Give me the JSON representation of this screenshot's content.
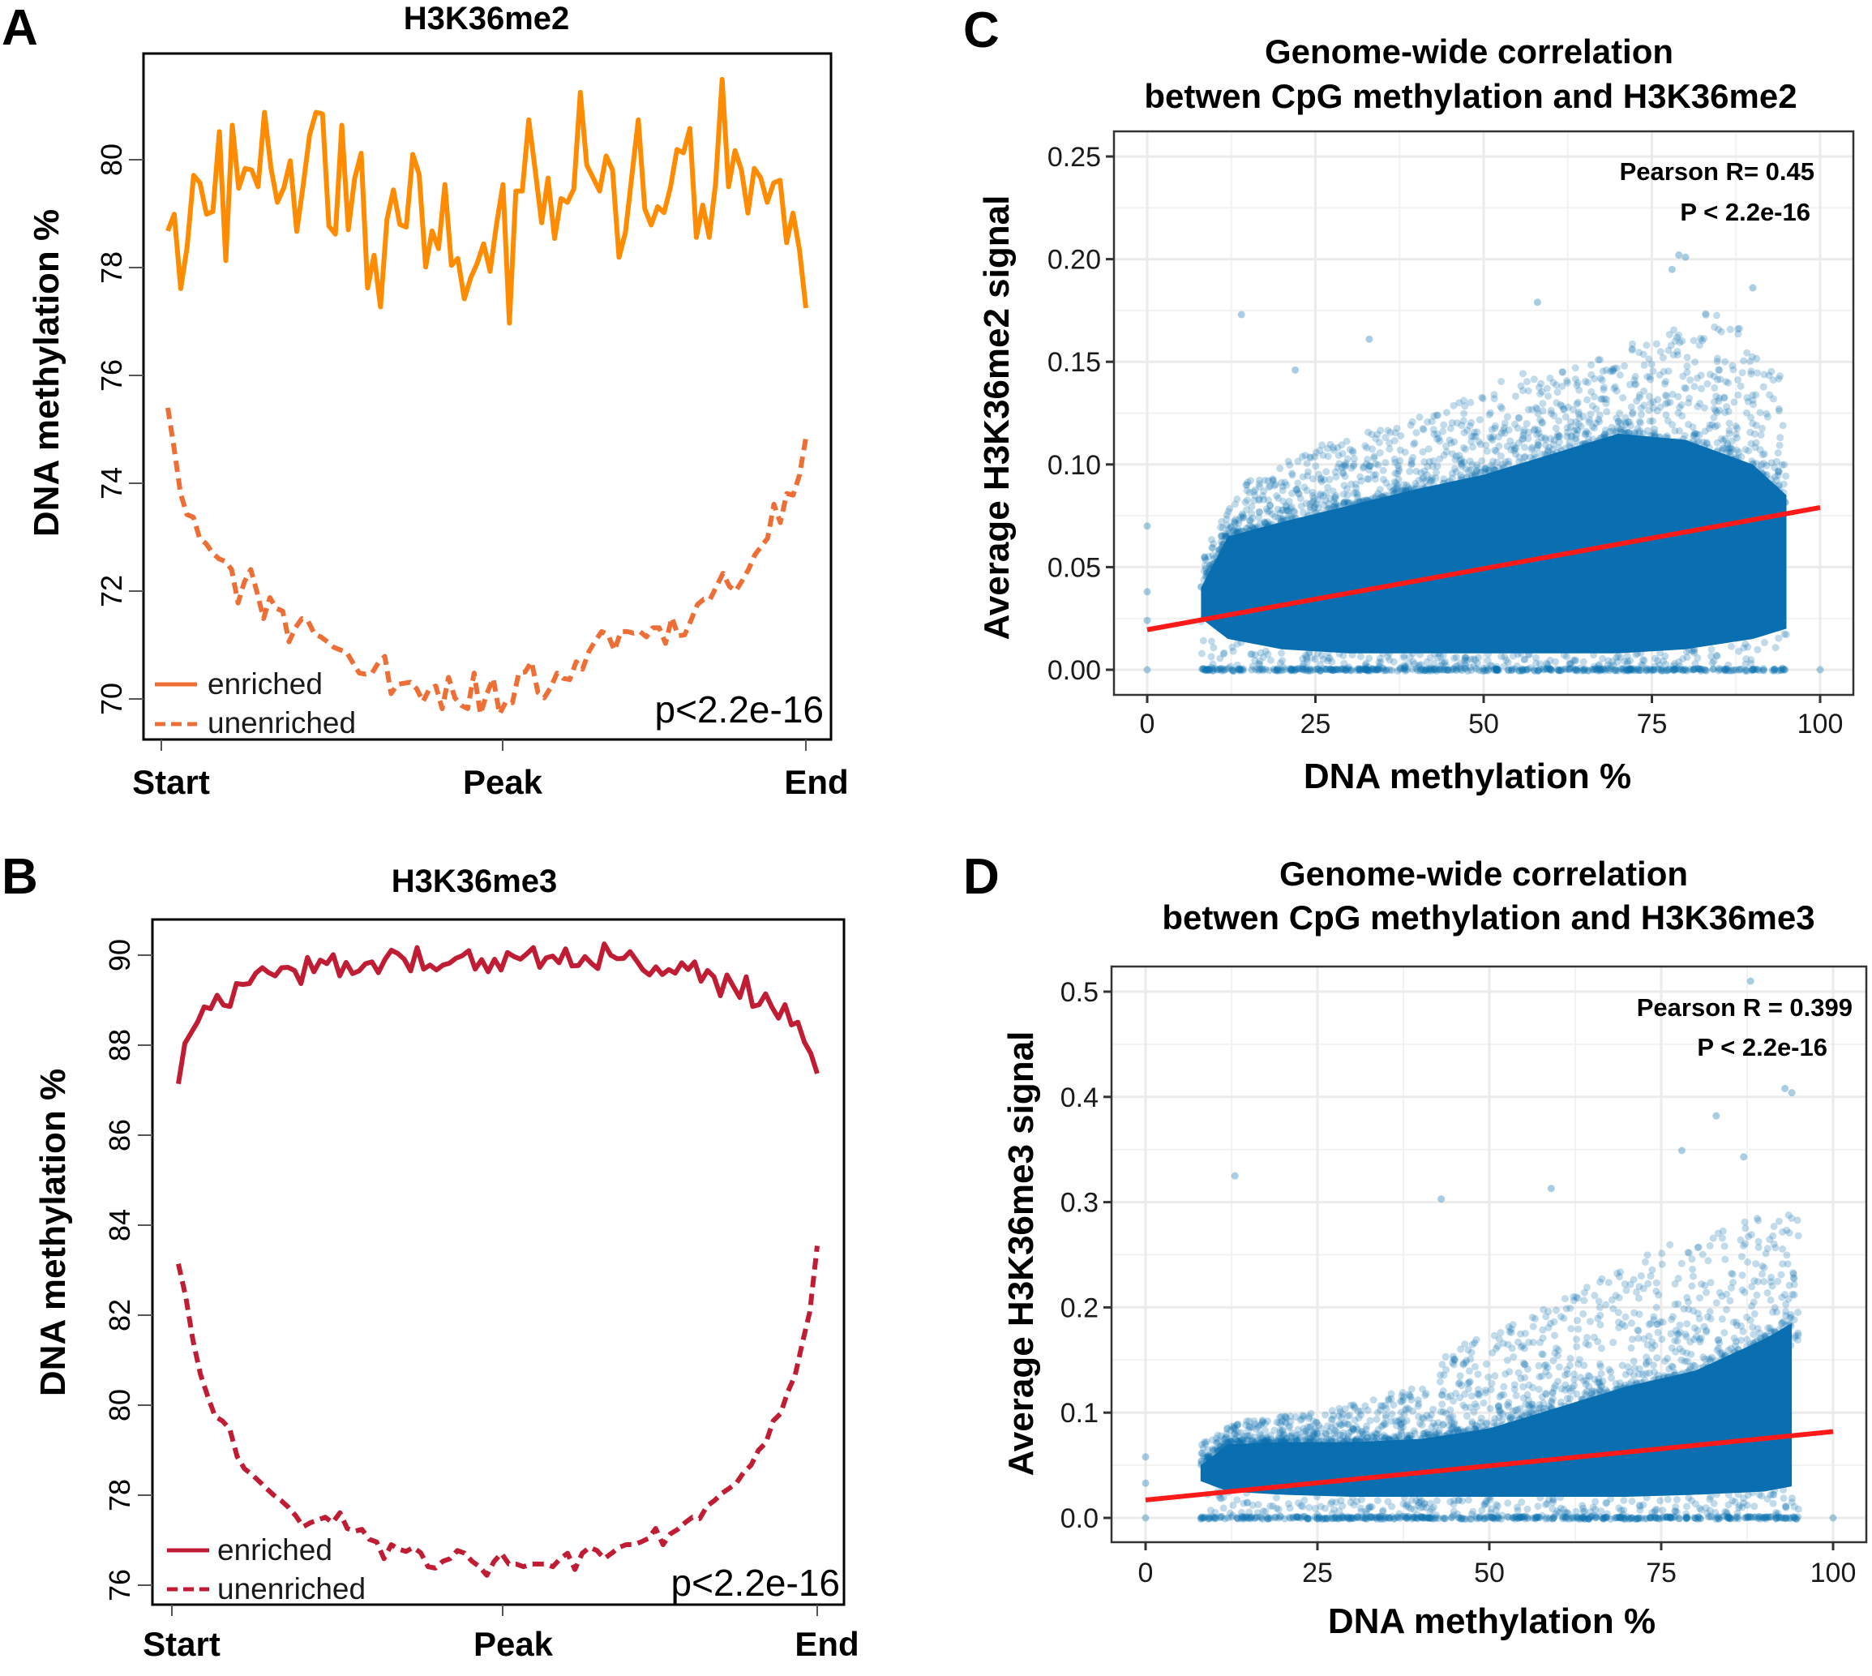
{
  "panels": {
    "A": {
      "letter": "A"
    },
    "B": {
      "letter": "B"
    },
    "C": {
      "letter": "C"
    },
    "D": {
      "letter": "D"
    }
  },
  "colors": {
    "A_enriched": "#ff8c00",
    "A_legend": "#ee6f36",
    "A_unenriched": "#ee6f36",
    "B_line": "#c01c33",
    "scatter_point": "#0a6fb0",
    "scatter_core": "#0a6fb0",
    "regression": "#ff1a1a",
    "grid": "#ebebeb",
    "frame": "#333333"
  },
  "chart_data": [
    {
      "id": "A",
      "type": "line",
      "title": "H3K36me2",
      "xlabel": "",
      "ylabel": "DNA methylation %",
      "x_categories": [
        "Start",
        "Peak",
        "End"
      ],
      "ylim": [
        69.3,
        81.9
      ],
      "yticks": [
        70,
        72,
        74,
        76,
        78,
        80
      ],
      "grid": false,
      "legend": {
        "placement": "bottom-left",
        "entries": [
          "enriched",
          "unenriched"
        ]
      },
      "annotation": "p<2.2e-16",
      "series": [
        {
          "name": "enriched",
          "style": "solid",
          "values": [
            78.68,
            78.99,
            77.61,
            78.38,
            79.71,
            79.57,
            78.99,
            79.04,
            80.52,
            78.13,
            80.64,
            79.47,
            79.84,
            79.81,
            79.5,
            80.88,
            79.85,
            79.21,
            79.48,
            79.98,
            78.67,
            79.52,
            80.46,
            80.88,
            80.85,
            78.77,
            78.62,
            80.64,
            78.7,
            79.66,
            80.12,
            77.62,
            78.23,
            77.27,
            78.89,
            79.44,
            78.8,
            78.75,
            80.1,
            79.73,
            78.01,
            78.68,
            78.35,
            79.54,
            78.04,
            78.17,
            77.42,
            77.81,
            78.08,
            78.44,
            77.93,
            78.8,
            79.54,
            76.97,
            79.42,
            79.42,
            80.74,
            79.81,
            78.83,
            79.66,
            78.54,
            79.28,
            79.21,
            79.46,
            81.25,
            79.9,
            79.66,
            79.42,
            80.07,
            79.81,
            78.19,
            78.65,
            79.71,
            80.74,
            79.09,
            78.79,
            79.13,
            79.02,
            79.5,
            80.19,
            80.13,
            80.58,
            78.56,
            79.16,
            78.56,
            79.57,
            81.49,
            79.5,
            80.17,
            79.81,
            79.01,
            79.84,
            79.66,
            79.21,
            79.57,
            79.62,
            78.46,
            79.01,
            78.33,
            77.25
          ]
        },
        {
          "name": "unenriched",
          "style": "dashed",
          "values": [
            75.4,
            74.63,
            73.81,
            73.42,
            73.37,
            72.98,
            72.88,
            72.71,
            72.6,
            72.55,
            72.4,
            71.78,
            72.17,
            72.4,
            71.97,
            71.49,
            71.88,
            71.68,
            71.63,
            71.06,
            71.32,
            71.49,
            71.44,
            71.2,
            71.15,
            71.06,
            70.96,
            70.91,
            70.87,
            70.67,
            70.48,
            70.46,
            70.48,
            70.67,
            70.79,
            70.1,
            70.27,
            70.29,
            70.31,
            70.19,
            69.95,
            70.19,
            70.24,
            69.82,
            70.4,
            70.02,
            69.88,
            69.82,
            70.48,
            69.72,
            70.1,
            70.38,
            69.72,
            69.95,
            69.93,
            70.48,
            70.5,
            70.69,
            70.12,
            70.02,
            70.21,
            70.48,
            70.38,
            70.36,
            70.69,
            70.55,
            70.88,
            71.08,
            71.25,
            71.19,
            70.9,
            71.25,
            71.25,
            71.22,
            71.25,
            71.15,
            71.32,
            71.32,
            71.03,
            71.51,
            71.17,
            71.19,
            71.46,
            71.75,
            71.85,
            71.85,
            72.09,
            72.33,
            72.09,
            72.0,
            72.19,
            72.4,
            72.67,
            72.83,
            72.98,
            73.61,
            73.27,
            73.81,
            73.78,
            74.15,
            74.84
          ]
        }
      ]
    },
    {
      "id": "B",
      "type": "line",
      "title": "H3K36me3",
      "xlabel": "",
      "ylabel": "DNA methylation %",
      "x_categories": [
        "Start",
        "Peak",
        "End"
      ],
      "ylim": [
        75.5,
        90.8
      ],
      "yticks": [
        76,
        78,
        80,
        82,
        84,
        86,
        88,
        90
      ],
      "grid": false,
      "legend": {
        "placement": "bottom-left",
        "entries": [
          "enriched",
          "unenriched"
        ]
      },
      "annotation": "p<2.2e-16",
      "series": [
        {
          "name": "enriched",
          "style": "solid",
          "values": [
            87.14,
            88.04,
            88.28,
            88.52,
            88.85,
            88.81,
            89.11,
            88.89,
            88.86,
            89.37,
            89.35,
            89.37,
            89.6,
            89.72,
            89.61,
            89.54,
            89.72,
            89.73,
            89.66,
            89.37,
            89.95,
            89.63,
            89.89,
            89.81,
            90.01,
            89.54,
            89.84,
            89.59,
            89.65,
            89.81,
            89.85,
            89.61,
            89.9,
            90.11,
            90.04,
            89.91,
            89.65,
            90.17,
            89.69,
            89.78,
            89.67,
            89.78,
            89.82,
            89.93,
            89.99,
            90.1,
            89.69,
            89.9,
            89.63,
            89.91,
            89.67,
            90.06,
            89.97,
            89.91,
            90.03,
            90.17,
            89.73,
            89.94,
            89.98,
            89.83,
            90.14,
            89.76,
            89.77,
            89.97,
            89.82,
            89.7,
            90.25,
            90.0,
            89.92,
            89.93,
            90.08,
            89.88,
            89.67,
            89.56,
            89.74,
            89.57,
            89.68,
            89.6,
            89.83,
            89.68,
            89.85,
            89.42,
            89.66,
            89.52,
            89.1,
            89.56,
            89.31,
            89.06,
            89.52,
            88.86,
            88.9,
            89.14,
            88.84,
            88.6,
            88.9,
            88.45,
            88.51,
            88.07,
            87.82,
            87.37
          ]
        },
        {
          "name": "unenriched",
          "style": "dashed",
          "values": [
            83.14,
            82.41,
            81.43,
            80.69,
            80.2,
            79.75,
            79.65,
            79.47,
            78.86,
            78.59,
            78.46,
            78.31,
            78.15,
            78.0,
            77.88,
            77.73,
            77.54,
            77.3,
            77.39,
            77.45,
            77.51,
            77.39,
            77.61,
            77.26,
            77.2,
            77.24,
            77.02,
            76.96,
            76.59,
            76.9,
            76.8,
            76.75,
            76.84,
            76.72,
            76.41,
            76.38,
            76.53,
            76.59,
            76.77,
            76.71,
            76.53,
            76.41,
            76.22,
            76.53,
            76.71,
            76.47,
            76.47,
            76.41,
            76.47,
            76.47,
            76.47,
            76.41,
            76.59,
            76.71,
            76.35,
            76.71,
            76.84,
            76.77,
            76.59,
            76.71,
            76.84,
            76.9,
            76.9,
            76.96,
            77.04,
            77.26,
            76.9,
            77.14,
            77.24,
            77.39,
            77.51,
            77.48,
            77.76,
            77.88,
            78.04,
            78.15,
            78.27,
            78.51,
            78.67,
            79.0,
            79.16,
            79.65,
            79.81,
            80.3,
            80.67,
            81.4,
            82.08,
            83.54
          ]
        }
      ]
    },
    {
      "id": "C",
      "type": "scatter",
      "title": [
        "Genome-wide correlation",
        "betwen CpG methylation and H3K36me2"
      ],
      "xlabel": "DNA methylation %",
      "ylabel": "Average H3K36me2 signal",
      "xlim": [
        -5,
        105
      ],
      "ylim": [
        -0.0075,
        0.2575
      ],
      "xticks": [
        0,
        25,
        50,
        75,
        100
      ],
      "yticks": [
        0.0,
        0.05,
        0.1,
        0.15,
        0.2,
        0.25
      ],
      "ytick_labels": [
        "0.00",
        "0.05",
        "0.10",
        "0.15",
        "0.20",
        "0.25"
      ],
      "grid": true,
      "annotation": [
        "Pearson R= 0.45",
        "P < 2.2e-16"
      ],
      "regression": {
        "x": [
          0,
          100
        ],
        "y": [
          0.0195,
          0.079
        ]
      },
      "dense_core": {
        "x": [
          8,
          12,
          20,
          30,
          40,
          50,
          60,
          70,
          80,
          90,
          95
        ],
        "upper": [
          0.04,
          0.065,
          0.072,
          0.08,
          0.088,
          0.095,
          0.105,
          0.115,
          0.112,
          0.1,
          0.085
        ],
        "lower": [
          0.025,
          0.015,
          0.01,
          0.008,
          0.008,
          0.008,
          0.008,
          0.008,
          0.01,
          0.015,
          0.02
        ]
      },
      "scatter_spread": {
        "x": [
          8,
          15,
          25,
          35,
          45,
          55,
          65,
          75,
          85,
          95
        ],
        "ymax": [
          0.06,
          0.1,
          0.12,
          0.13,
          0.14,
          0.16,
          0.16,
          0.18,
          0.2,
          0.16
        ]
      },
      "outliers": [
        [
          0,
          0.07
        ],
        [
          0,
          0.038
        ],
        [
          0,
          0.024
        ],
        [
          0,
          0.0
        ],
        [
          100,
          0.0
        ],
        [
          14,
          0.173
        ],
        [
          33,
          0.161
        ],
        [
          58,
          0.179
        ],
        [
          79,
          0.202
        ],
        [
          80,
          0.201
        ],
        [
          90,
          0.186
        ],
        [
          78,
          0.195
        ],
        [
          22,
          0.146
        ]
      ]
    },
    {
      "id": "D",
      "type": "scatter",
      "title": [
        "Genome-wide correlation",
        "betwen CpG methylation and H3K36me3"
      ],
      "xlabel": "DNA methylation %",
      "ylabel": "Average H3K36me3 signal",
      "xlim": [
        -5,
        105
      ],
      "ylim": [
        -0.035,
        0.525
      ],
      "xticks": [
        0,
        25,
        50,
        75,
        100
      ],
      "yticks": [
        0.0,
        0.1,
        0.2,
        0.3,
        0.4,
        0.5
      ],
      "ytick_labels": [
        "0.0",
        "0.1",
        "0.2",
        "0.3",
        "0.4",
        "0.5"
      ],
      "grid": true,
      "annotation": [
        "Pearson R = 0.399",
        "P < 2.2e-16"
      ],
      "regression": {
        "x": [
          0,
          100
        ],
        "y": [
          0.017,
          0.082
        ]
      },
      "dense_core": {
        "x": [
          8,
          12,
          20,
          30,
          40,
          50,
          60,
          70,
          80,
          90,
          94
        ],
        "upper": [
          0.05,
          0.07,
          0.072,
          0.072,
          0.075,
          0.085,
          0.105,
          0.125,
          0.14,
          0.17,
          0.185
        ],
        "lower": [
          0.035,
          0.025,
          0.022,
          0.02,
          0.02,
          0.02,
          0.02,
          0.02,
          0.022,
          0.025,
          0.03
        ]
      },
      "scatter_spread": {
        "x": [
          8,
          15,
          25,
          35,
          45,
          55,
          65,
          75,
          85,
          95
        ],
        "ymax": [
          0.08,
          0.1,
          0.11,
          0.13,
          0.19,
          0.22,
          0.26,
          0.3,
          0.32,
          0.33
        ]
      },
      "outliers": [
        [
          0,
          0.058
        ],
        [
          0,
          0.033
        ],
        [
          0,
          0.0
        ],
        [
          100,
          0.0
        ],
        [
          13,
          0.325
        ],
        [
          43,
          0.303
        ],
        [
          59,
          0.313
        ],
        [
          88,
          0.51
        ],
        [
          93,
          0.408
        ],
        [
          94,
          0.404
        ],
        [
          83,
          0.382
        ],
        [
          78,
          0.349
        ],
        [
          87,
          0.343
        ]
      ]
    }
  ]
}
